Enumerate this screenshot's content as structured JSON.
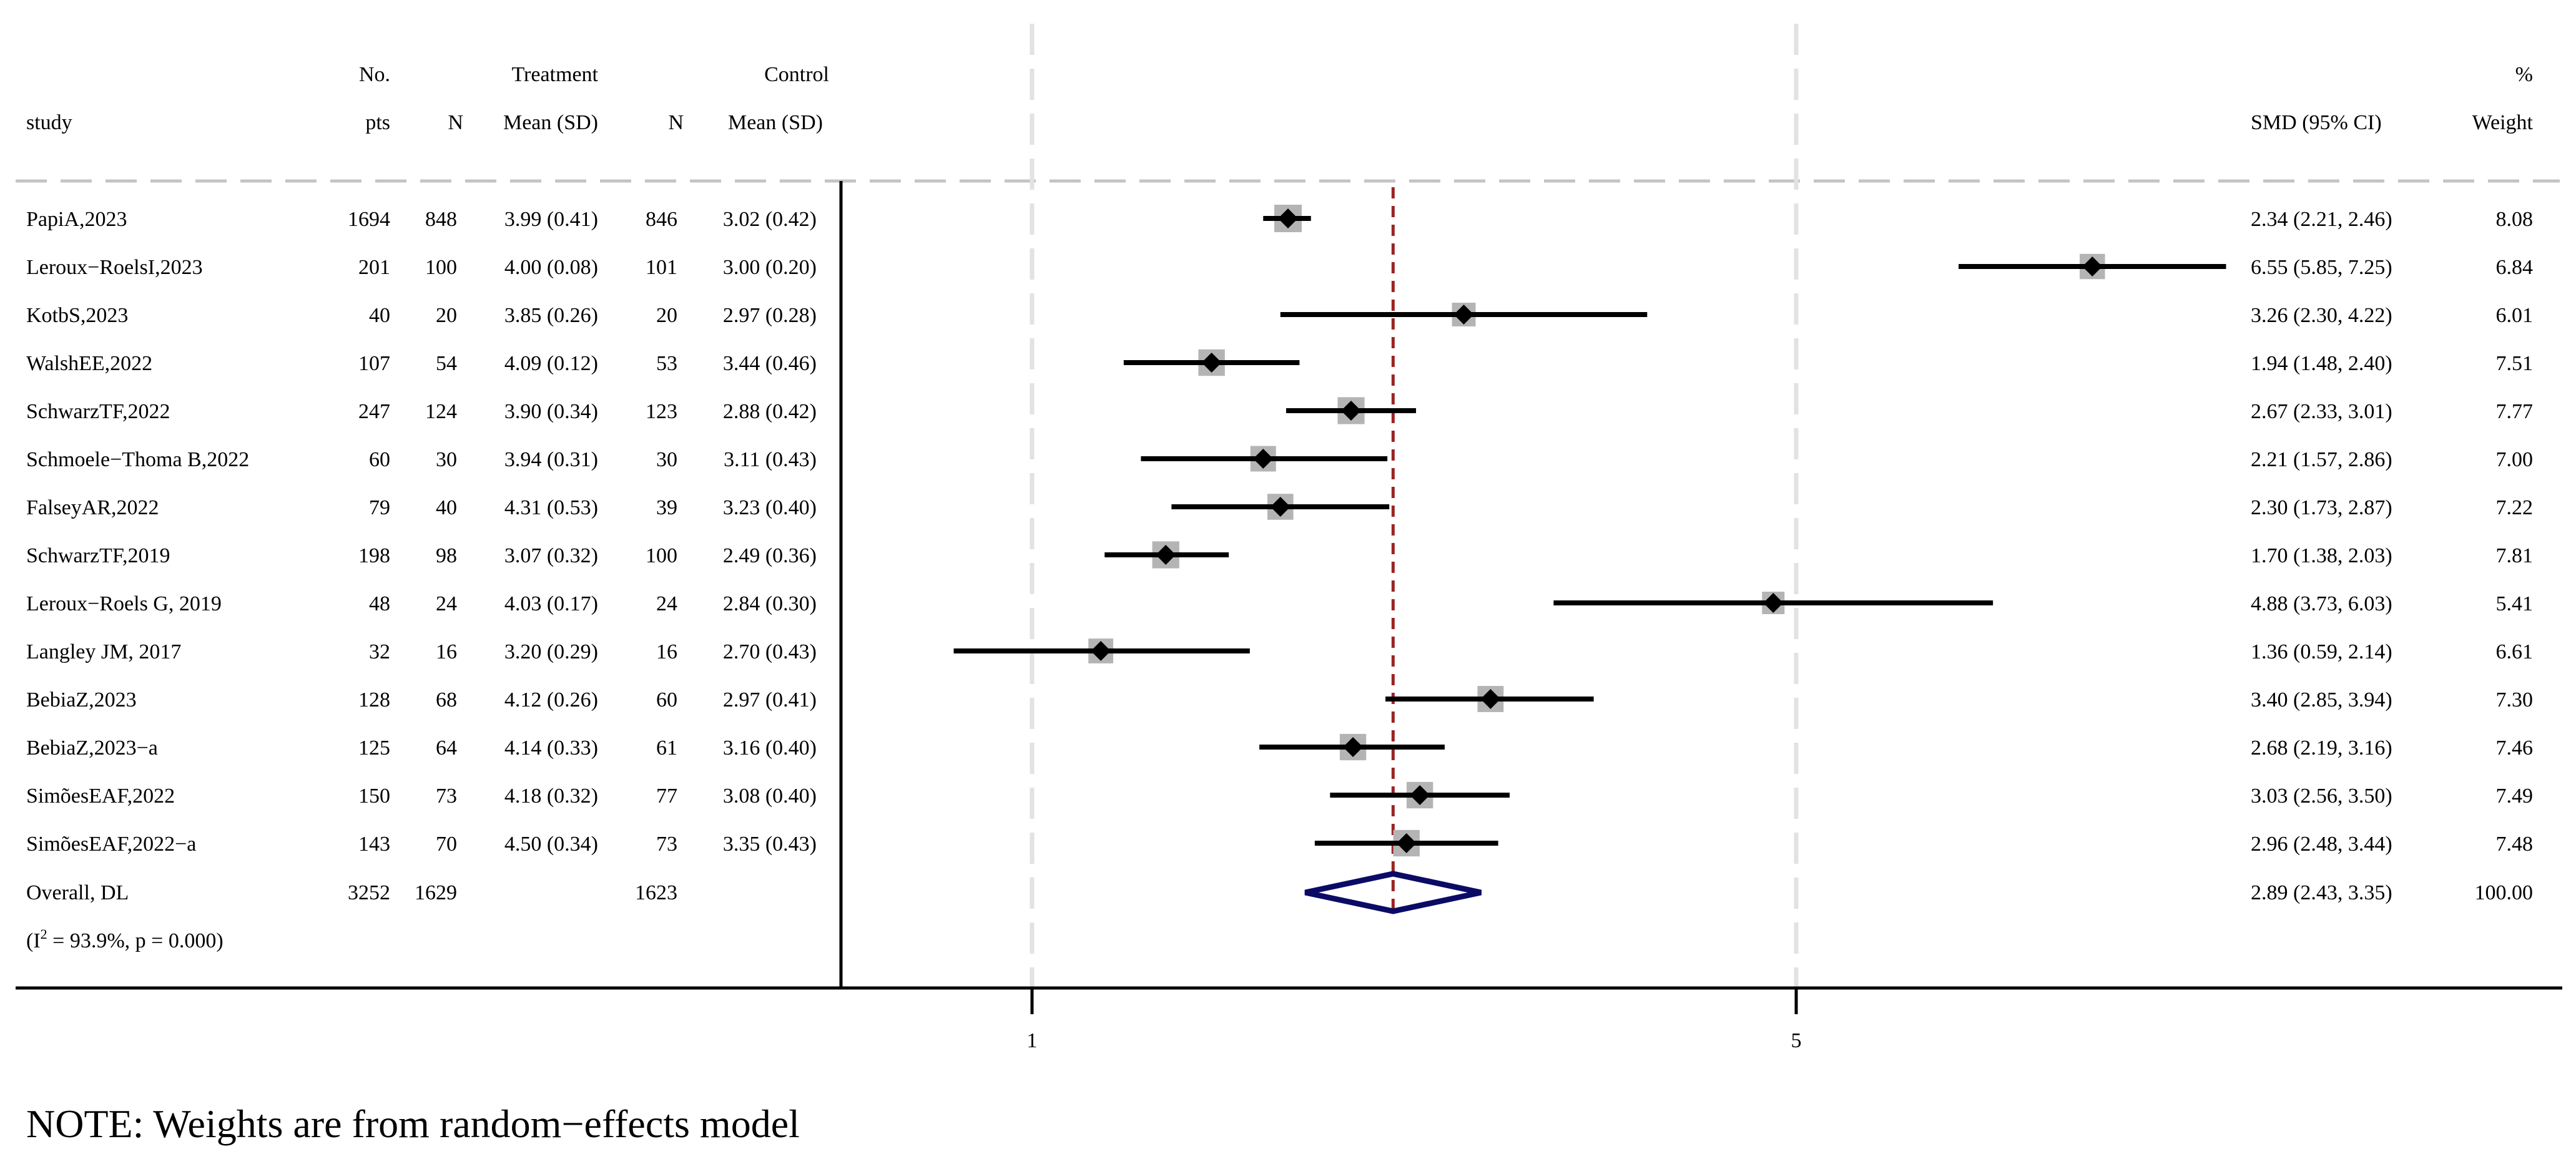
{
  "chart_data": {
    "type": "forest",
    "header": {
      "study": "study",
      "no": "No.",
      "pts": "pts",
      "treatment": "Treatment",
      "control": "Control",
      "n_t": "N",
      "mean_t": "Mean (SD)",
      "n_c": "N",
      "mean_c": "Mean (SD)",
      "smd": "SMD (95% CI)",
      "pct": "%",
      "weight": "Weight"
    },
    "studies": [
      {
        "name": "PapiA,2023",
        "pts": "1694",
        "n_t": "848",
        "mean_t": "3.99 (0.41)",
        "n_c": "846",
        "mean_c": "3.02 (0.42)",
        "smd": 2.34,
        "lo": 2.21,
        "hi": 2.46,
        "ci_text": "2.34 (2.21, 2.46)",
        "weight": 8.08,
        "weight_text": "8.08"
      },
      {
        "name": "Leroux−RoelsI,2023",
        "pts": "201",
        "n_t": "100",
        "mean_t": "4.00 (0.08)",
        "n_c": "101",
        "mean_c": "3.00 (0.20)",
        "smd": 6.55,
        "lo": 5.85,
        "hi": 7.25,
        "ci_text": "6.55 (5.85, 7.25)",
        "weight": 6.84,
        "weight_text": "6.84"
      },
      {
        "name": "KotbS,2023",
        "pts": "40",
        "n_t": "20",
        "mean_t": "3.85 (0.26)",
        "n_c": "20",
        "mean_c": "2.97 (0.28)",
        "smd": 3.26,
        "lo": 2.3,
        "hi": 4.22,
        "ci_text": "3.26 (2.30, 4.22)",
        "weight": 6.01,
        "weight_text": "6.01"
      },
      {
        "name": "WalshEE,2022",
        "pts": "107",
        "n_t": "54",
        "mean_t": "4.09 (0.12)",
        "n_c": "53",
        "mean_c": "3.44 (0.46)",
        "smd": 1.94,
        "lo": 1.48,
        "hi": 2.4,
        "ci_text": "1.94 (1.48, 2.40)",
        "weight": 7.51,
        "weight_text": "7.51"
      },
      {
        "name": "SchwarzTF,2022",
        "pts": "247",
        "n_t": "124",
        "mean_t": "3.90 (0.34)",
        "n_c": "123",
        "mean_c": "2.88 (0.42)",
        "smd": 2.67,
        "lo": 2.33,
        "hi": 3.01,
        "ci_text": "2.67 (2.33, 3.01)",
        "weight": 7.77,
        "weight_text": "7.77"
      },
      {
        "name": "Schmoele−Thoma B,2022",
        "pts": "60",
        "n_t": "30",
        "mean_t": "3.94 (0.31)",
        "n_c": "30",
        "mean_c": "3.11 (0.43)",
        "smd": 2.21,
        "lo": 1.57,
        "hi": 2.86,
        "ci_text": "2.21 (1.57, 2.86)",
        "weight": 7.0,
        "weight_text": "7.00"
      },
      {
        "name": "FalseyAR,2022",
        "pts": "79",
        "n_t": "40",
        "mean_t": "4.31 (0.53)",
        "n_c": "39",
        "mean_c": "3.23 (0.40)",
        "smd": 2.3,
        "lo": 1.73,
        "hi": 2.87,
        "ci_text": "2.30 (1.73, 2.87)",
        "weight": 7.22,
        "weight_text": "7.22"
      },
      {
        "name": "SchwarzTF,2019",
        "pts": "198",
        "n_t": "98",
        "mean_t": "3.07 (0.32)",
        "n_c": "100",
        "mean_c": "2.49 (0.36)",
        "smd": 1.7,
        "lo": 1.38,
        "hi": 2.03,
        "ci_text": "1.70 (1.38, 2.03)",
        "weight": 7.81,
        "weight_text": "7.81"
      },
      {
        "name": "Leroux−Roels G, 2019",
        "pts": "48",
        "n_t": "24",
        "mean_t": "4.03 (0.17)",
        "n_c": "24",
        "mean_c": "2.84 (0.30)",
        "smd": 4.88,
        "lo": 3.73,
        "hi": 6.03,
        "ci_text": "4.88 (3.73, 6.03)",
        "weight": 5.41,
        "weight_text": "5.41"
      },
      {
        "name": "Langley JM, 2017",
        "pts": "32",
        "n_t": "16",
        "mean_t": "3.20 (0.29)",
        "n_c": "16",
        "mean_c": "2.70 (0.43)",
        "smd": 1.36,
        "lo": 0.59,
        "hi": 2.14,
        "ci_text": "1.36 (0.59, 2.14)",
        "weight": 6.61,
        "weight_text": "6.61"
      },
      {
        "name": "BebiaZ,2023",
        "pts": "128",
        "n_t": "68",
        "mean_t": "4.12 (0.26)",
        "n_c": "60",
        "mean_c": "2.97 (0.41)",
        "smd": 3.4,
        "lo": 2.85,
        "hi": 3.94,
        "ci_text": "3.40 (2.85, 3.94)",
        "weight": 7.3,
        "weight_text": "7.30"
      },
      {
        "name": "BebiaZ,2023−a",
        "pts": "125",
        "n_t": "64",
        "mean_t": "4.14 (0.33)",
        "n_c": "61",
        "mean_c": "3.16 (0.40)",
        "smd": 2.68,
        "lo": 2.19,
        "hi": 3.16,
        "ci_text": "2.68 (2.19, 3.16)",
        "weight": 7.46,
        "weight_text": "7.46"
      },
      {
        "name": "SimõesEAF,2022",
        "pts": "150",
        "n_t": "73",
        "mean_t": "4.18 (0.32)",
        "n_c": "77",
        "mean_c": "3.08 (0.40)",
        "smd": 3.03,
        "lo": 2.56,
        "hi": 3.5,
        "ci_text": "3.03 (2.56, 3.50)",
        "weight": 7.49,
        "weight_text": "7.49"
      },
      {
        "name": "SimõesEAF,2022−a",
        "pts": "143",
        "n_t": "70",
        "mean_t": "4.50 (0.34)",
        "n_c": "73",
        "mean_c": "3.35 (0.43)",
        "smd": 2.96,
        "lo": 2.48,
        "hi": 3.44,
        "ci_text": "2.96 (2.48, 3.44)",
        "weight": 7.48,
        "weight_text": "7.48"
      }
    ],
    "overall": {
      "name": "Overall, DL",
      "pts": "3252",
      "n_t": "1629",
      "n_c": "1623",
      "smd": 2.89,
      "lo": 2.43,
      "hi": 3.35,
      "ci_text": "2.89 (2.43, 3.35)",
      "weight_text": "100.00"
    },
    "heterogeneity": {
      "prefix": "(I",
      "sup": "2",
      "rest": " = 93.9%, p = 0.000)"
    },
    "xaxis": {
      "ticks": [
        1,
        5
      ],
      "tick_labels": [
        "1",
        "5"
      ],
      "range": [
        0.59,
        7.25
      ]
    },
    "reference_lines": [
      1,
      5
    ],
    "note": "NOTE: Weights are from random−effects model"
  },
  "colors": {
    "marker": "#000000",
    "box": "#b4b4b4",
    "ci_line": "#000000",
    "overall_line": "#9a2424",
    "diamond": "#0b0b66",
    "dash_grey": "#c4c4c4",
    "ref_dash": "#e2e2e2"
  }
}
